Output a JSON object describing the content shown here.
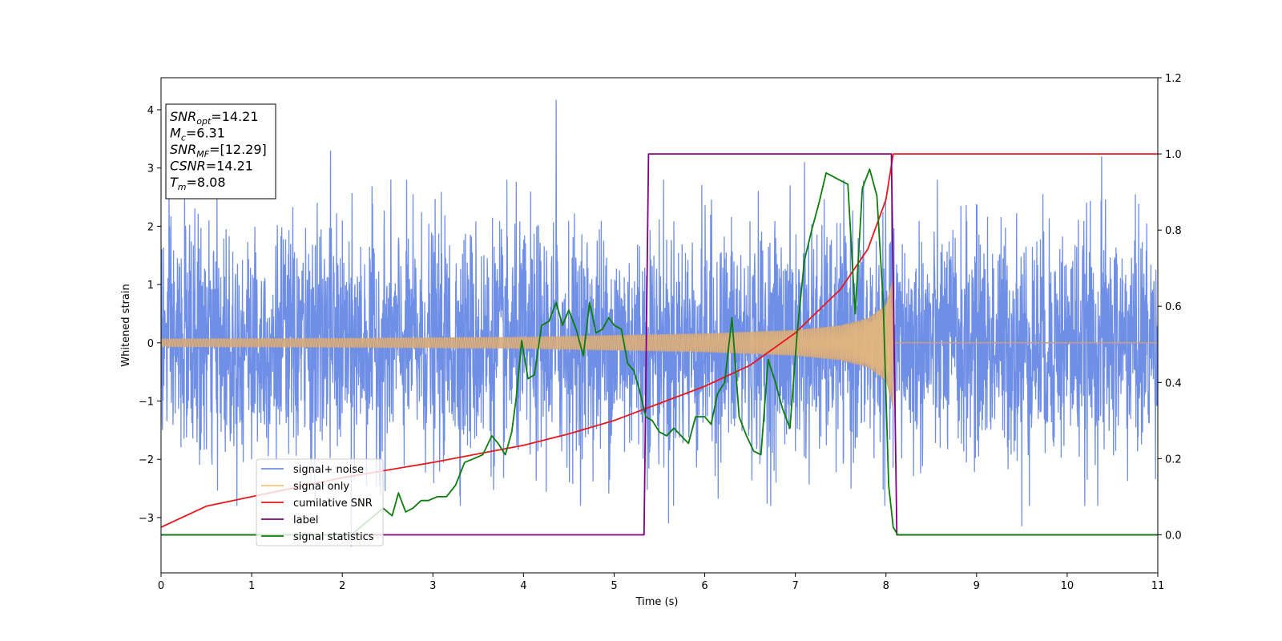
{
  "chart_data": {
    "type": "line",
    "xlabel": "Time (s)",
    "ylabel": "Whitened strain",
    "xlim": [
      0,
      11
    ],
    "ylim_left": [
      -3.95,
      4.55
    ],
    "ylim_right": [
      -0.1,
      1.2
    ],
    "x_ticks": [
      0,
      1,
      2,
      3,
      4,
      5,
      6,
      7,
      8,
      9,
      10,
      11
    ],
    "y_ticks_left": [
      -3,
      -2,
      -1,
      0,
      1,
      2,
      3,
      4
    ],
    "y_ticks_right": [
      0.0,
      0.2,
      0.4,
      0.6,
      0.8,
      1.0,
      1.2
    ],
    "legend_placement": "lower-left",
    "info_box": {
      "lines": [
        {
          "symbol": "SNR",
          "sub": "opt",
          "value": "=14.21"
        },
        {
          "symbol": "M",
          "sub": "c",
          "value": "=6.31"
        },
        {
          "symbol": "SNR",
          "sub": "MF",
          "value": "=[12.29]"
        },
        {
          "symbol": "CSNR",
          "sub": "",
          "value": "=14.21"
        },
        {
          "symbol": "T",
          "sub": "m",
          "value": "=8.08"
        }
      ]
    },
    "series": [
      {
        "name": "signal+ noise",
        "axis": "left",
        "color": "#6f8ee6",
        "kind": "noise",
        "x_range": [
          0,
          11
        ],
        "typical_amplitude": 1.8,
        "peaks": [
          [
            0.26,
            2.6
          ],
          [
            1.87,
            3.3
          ],
          [
            2.0,
            2.1
          ],
          [
            4.36,
            4.17
          ],
          [
            7.1,
            3.1
          ],
          [
            10.38,
            3.2
          ],
          [
            2.1,
            -3.5
          ],
          [
            5.6,
            -3.1
          ],
          [
            9.5,
            -3.15
          ]
        ]
      },
      {
        "name": "signal only",
        "axis": "left",
        "color": "#f5c27a",
        "kind": "chirp",
        "x_range": [
          0,
          8.08
        ],
        "envelope": [
          [
            0,
            0.07
          ],
          [
            2.0,
            0.08
          ],
          [
            4.0,
            0.1
          ],
          [
            5.0,
            0.13
          ],
          [
            6.0,
            0.16
          ],
          [
            7.0,
            0.22
          ],
          [
            7.5,
            0.3
          ],
          [
            7.8,
            0.42
          ],
          [
            8.0,
            0.65
          ],
          [
            8.08,
            1.15
          ]
        ]
      },
      {
        "name": "cumilative SNR",
        "axis": "right",
        "color": "#e8171b",
        "x": [
          0,
          0.5,
          1,
          2,
          3,
          4,
          4.5,
          5,
          5.5,
          6,
          6.5,
          7,
          7.5,
          7.8,
          8.0,
          8.08,
          8.09,
          11
        ],
        "y": [
          0.02,
          0.075,
          0.1,
          0.15,
          0.19,
          0.235,
          0.265,
          0.3,
          0.345,
          0.39,
          0.445,
          0.53,
          0.645,
          0.75,
          0.88,
          1.0,
          1.0,
          1.0
        ]
      },
      {
        "name": "label",
        "axis": "right",
        "color": "#800080",
        "x": [
          0,
          5.27,
          5.33,
          5.38,
          8.06,
          8.12,
          11
        ],
        "y": [
          0,
          0,
          0,
          1,
          1,
          0,
          0
        ]
      },
      {
        "name": "signal statistics",
        "axis": "right",
        "color": "#0a7d0a",
        "x": [
          0,
          2.1,
          2.3,
          2.45,
          2.55,
          2.62,
          2.7,
          2.78,
          2.87,
          2.95,
          3.05,
          3.15,
          3.25,
          3.35,
          3.45,
          3.55,
          3.65,
          3.72,
          3.8,
          3.87,
          3.92,
          3.98,
          4.05,
          4.12,
          4.2,
          4.28,
          4.36,
          4.43,
          4.5,
          4.58,
          4.66,
          4.73,
          4.8,
          4.87,
          4.94,
          5.0,
          5.08,
          5.15,
          5.22,
          5.28,
          5.35,
          5.42,
          5.5,
          5.58,
          5.66,
          5.74,
          5.82,
          5.9,
          6.0,
          6.07,
          6.14,
          6.22,
          6.3,
          6.38,
          6.46,
          6.54,
          6.62,
          6.7,
          6.78,
          6.86,
          6.94,
          7.02,
          7.1,
          7.18,
          7.26,
          7.34,
          7.42,
          7.5,
          7.58,
          7.66,
          7.74,
          7.82,
          7.9,
          7.97,
          8.03,
          8.08,
          8.13,
          11
        ],
        "y": [
          0,
          0.0,
          0.04,
          0.07,
          0.05,
          0.11,
          0.06,
          0.07,
          0.09,
          0.09,
          0.1,
          0.1,
          0.13,
          0.19,
          0.2,
          0.21,
          0.26,
          0.24,
          0.21,
          0.27,
          0.36,
          0.51,
          0.41,
          0.42,
          0.55,
          0.56,
          0.61,
          0.55,
          0.59,
          0.54,
          0.47,
          0.61,
          0.53,
          0.54,
          0.57,
          0.55,
          0.54,
          0.45,
          0.43,
          0.38,
          0.31,
          0.3,
          0.27,
          0.26,
          0.28,
          0.26,
          0.24,
          0.31,
          0.31,
          0.29,
          0.37,
          0.4,
          0.57,
          0.31,
          0.26,
          0.22,
          0.21,
          0.46,
          0.4,
          0.33,
          0.28,
          0.53,
          0.72,
          0.8,
          0.87,
          0.95,
          0.94,
          0.93,
          0.92,
          0.58,
          0.91,
          0.96,
          0.89,
          0.61,
          0.13,
          0.02,
          0.0,
          0.0
        ]
      }
    ]
  }
}
